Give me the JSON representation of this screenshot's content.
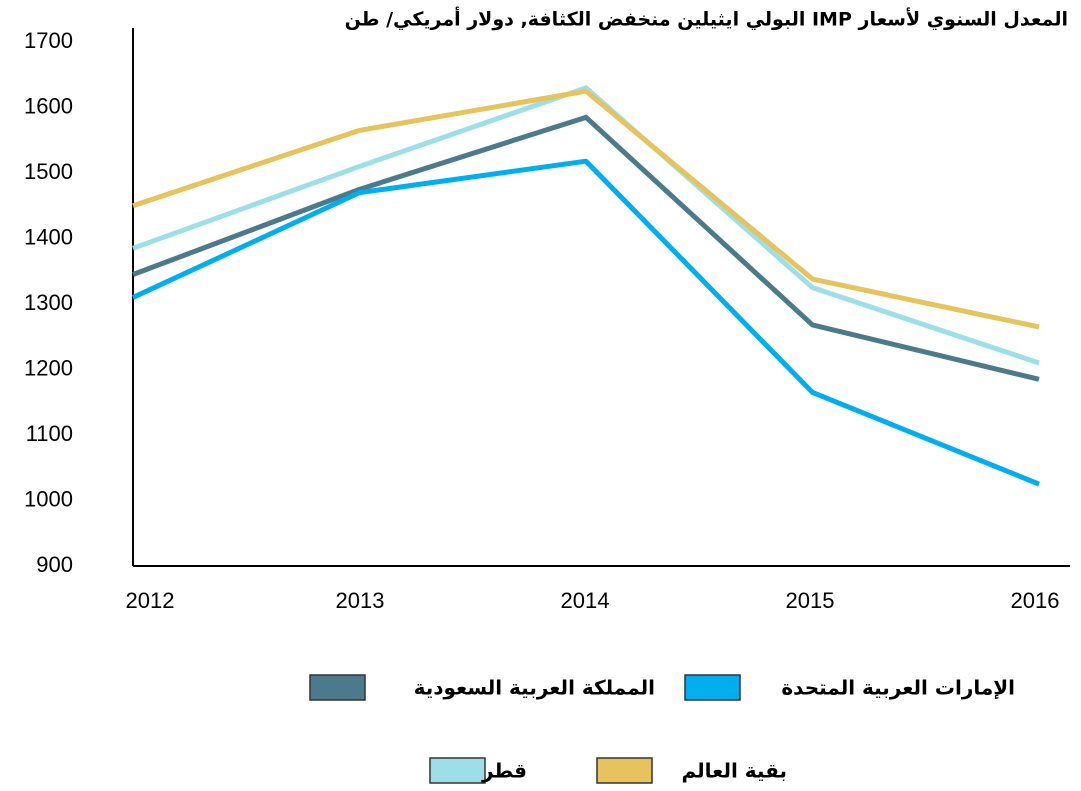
{
  "chart_data": {
    "type": "line",
    "title": "المعدل السنوي لأسعار IMP البولي ايثيلين منخفض الكثافة, دولار أمريكي/ طن",
    "categories": [
      "2012",
      "2013",
      "2014",
      "2015",
      "2016"
    ],
    "series": [
      {
        "name": "المملكة العربية السعودية",
        "color": "#4a7a8c",
        "values": [
          1345,
          1475,
          1585,
          1268,
          1185
        ]
      },
      {
        "name": "الإمارات العربية المتحدة",
        "color": "#00aeef",
        "values": [
          1310,
          1470,
          1518,
          1165,
          1025
        ]
      },
      {
        "name": "قطر",
        "color": "#9ddfe8",
        "values": [
          1385,
          1510,
          1630,
          1325,
          1210
        ]
      },
      {
        "name": "بقية العالم",
        "color": "#e6c35c",
        "values": [
          1450,
          1565,
          1625,
          1338,
          1265
        ]
      }
    ],
    "ylim": [
      900,
      1700
    ],
    "yticks": [
      900,
      1000,
      1100,
      1200,
      1300,
      1400,
      1500,
      1600,
      1700
    ],
    "grid": false
  }
}
